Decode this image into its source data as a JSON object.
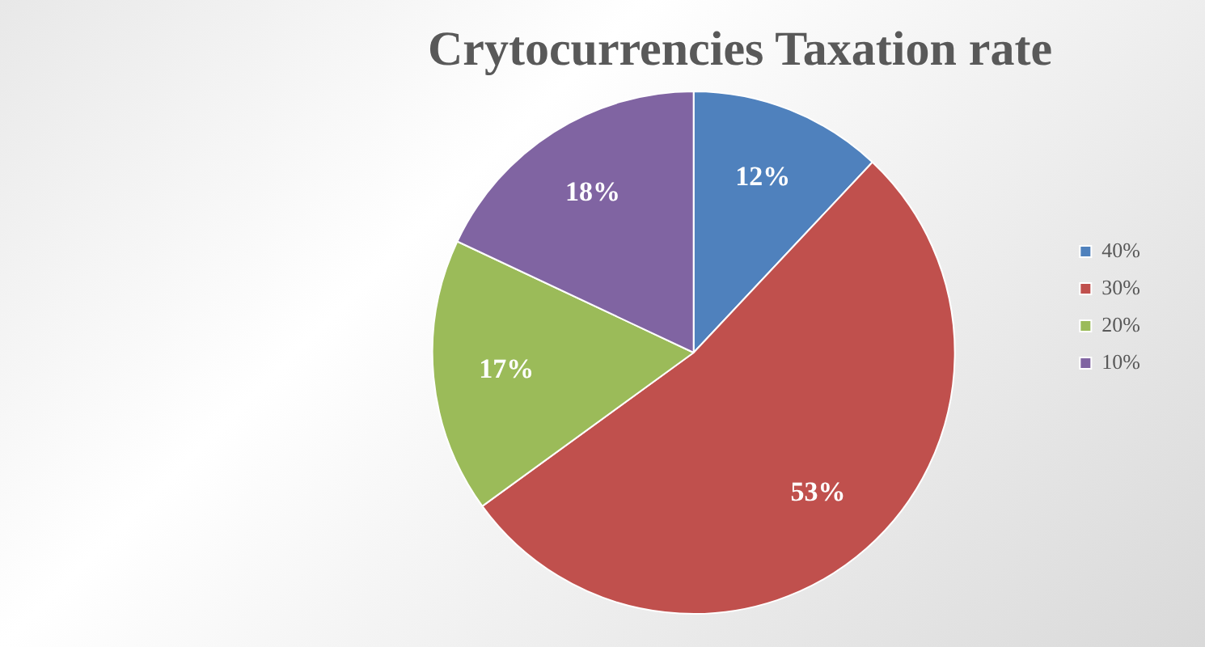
{
  "chart_data": {
    "type": "pie",
    "title": "Crytocurrencies Taxation rate",
    "categories": [
      "40%",
      "30%",
      "20%",
      "10%"
    ],
    "values": [
      12,
      53,
      17,
      18
    ],
    "colors": [
      "#4f81bd",
      "#c0504d",
      "#9bbb59",
      "#8064a2"
    ],
    "value_labels": [
      "12%",
      "53%",
      "17%",
      "18%"
    ],
    "legend": "right"
  }
}
